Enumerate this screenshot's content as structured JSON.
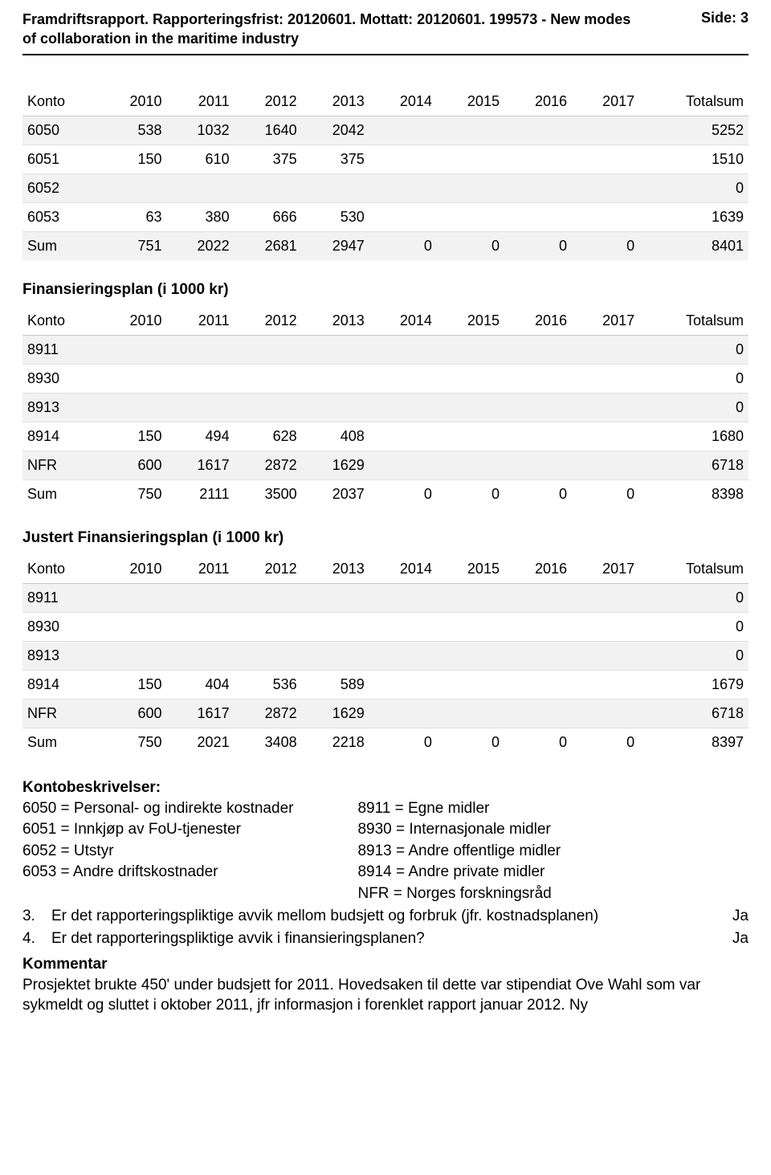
{
  "header": {
    "title": "Framdriftsrapport. Rapporteringsfrist: 20120601. Mottatt: 20120601. 199573 - New modes of collaboration in the maritime industry",
    "side": "Side: 3"
  },
  "year_columns": [
    "Konto",
    "2010",
    "2011",
    "2012",
    "2013",
    "2014",
    "2015",
    "2016",
    "2017",
    "Totalsum"
  ],
  "table1": {
    "rows": [
      [
        "6050",
        "538",
        "1032",
        "1640",
        "2042",
        "",
        "",
        "",
        "",
        "5252"
      ],
      [
        "6051",
        "150",
        "610",
        "375",
        "375",
        "",
        "",
        "",
        "",
        "1510"
      ],
      [
        "6052",
        "",
        "",
        "",
        "",
        "",
        "",
        "",
        "",
        "0"
      ],
      [
        "6053",
        "63",
        "380",
        "666",
        "530",
        "",
        "",
        "",
        "",
        "1639"
      ],
      [
        "Sum",
        "751",
        "2022",
        "2681",
        "2947",
        "0",
        "0",
        "0",
        "0",
        "8401"
      ]
    ]
  },
  "section2_title": "Finansieringsplan (i 1000 kr)",
  "table2": {
    "rows": [
      [
        "8911",
        "",
        "",
        "",
        "",
        "",
        "",
        "",
        "",
        "0"
      ],
      [
        "8930",
        "",
        "",
        "",
        "",
        "",
        "",
        "",
        "",
        "0"
      ],
      [
        "8913",
        "",
        "",
        "",
        "",
        "",
        "",
        "",
        "",
        "0"
      ],
      [
        "8914",
        "150",
        "494",
        "628",
        "408",
        "",
        "",
        "",
        "",
        "1680"
      ],
      [
        "NFR",
        "600",
        "1617",
        "2872",
        "1629",
        "",
        "",
        "",
        "",
        "6718"
      ],
      [
        "Sum",
        "750",
        "2111",
        "3500",
        "2037",
        "0",
        "0",
        "0",
        "0",
        "8398"
      ]
    ]
  },
  "section3_title": "Justert Finansieringsplan (i 1000 kr)",
  "table3": {
    "rows": [
      [
        "8911",
        "",
        "",
        "",
        "",
        "",
        "",
        "",
        "",
        "0"
      ],
      [
        "8930",
        "",
        "",
        "",
        "",
        "",
        "",
        "",
        "",
        "0"
      ],
      [
        "8913",
        "",
        "",
        "",
        "",
        "",
        "",
        "",
        "",
        "0"
      ],
      [
        "8914",
        "150",
        "404",
        "536",
        "589",
        "",
        "",
        "",
        "",
        "1679"
      ],
      [
        "NFR",
        "600",
        "1617",
        "2872",
        "1629",
        "",
        "",
        "",
        "",
        "6718"
      ],
      [
        "Sum",
        "750",
        "2021",
        "3408",
        "2218",
        "0",
        "0",
        "0",
        "0",
        "8397"
      ]
    ]
  },
  "kontobeskrivelser": {
    "heading": "Kontobeskrivelser:",
    "left": [
      "6050 = Personal- og indirekte kostnader",
      "6051 = Innkjøp av FoU-tjenester",
      "6052 = Utstyr",
      "6053 = Andre driftskostnader"
    ],
    "right": [
      "8911 = Egne midler",
      "8930 = Internasjonale midler",
      "8913 = Andre offentlige midler",
      "8914 = Andre private midler",
      "NFR = Norges forskningsråd"
    ]
  },
  "questions": [
    {
      "n": "3.",
      "text": "Er det rapporteringspliktige avvik mellom budsjett og forbruk (jfr. kostnadsplanen)",
      "answer": "Ja"
    },
    {
      "n": "4.",
      "text": "Er det rapporteringspliktige avvik i finansieringsplanen?",
      "answer": "Ja"
    }
  ],
  "kommentar_label": "Kommentar",
  "kommentar_text": "Prosjektet brukte 450' under budsjett for 2011. Hovedsaken til dette var stipendiat Ove Wahl som var sykmeldt og sluttet i oktober 2011, jfr informasjon i forenklet rapport januar 2012. Ny"
}
